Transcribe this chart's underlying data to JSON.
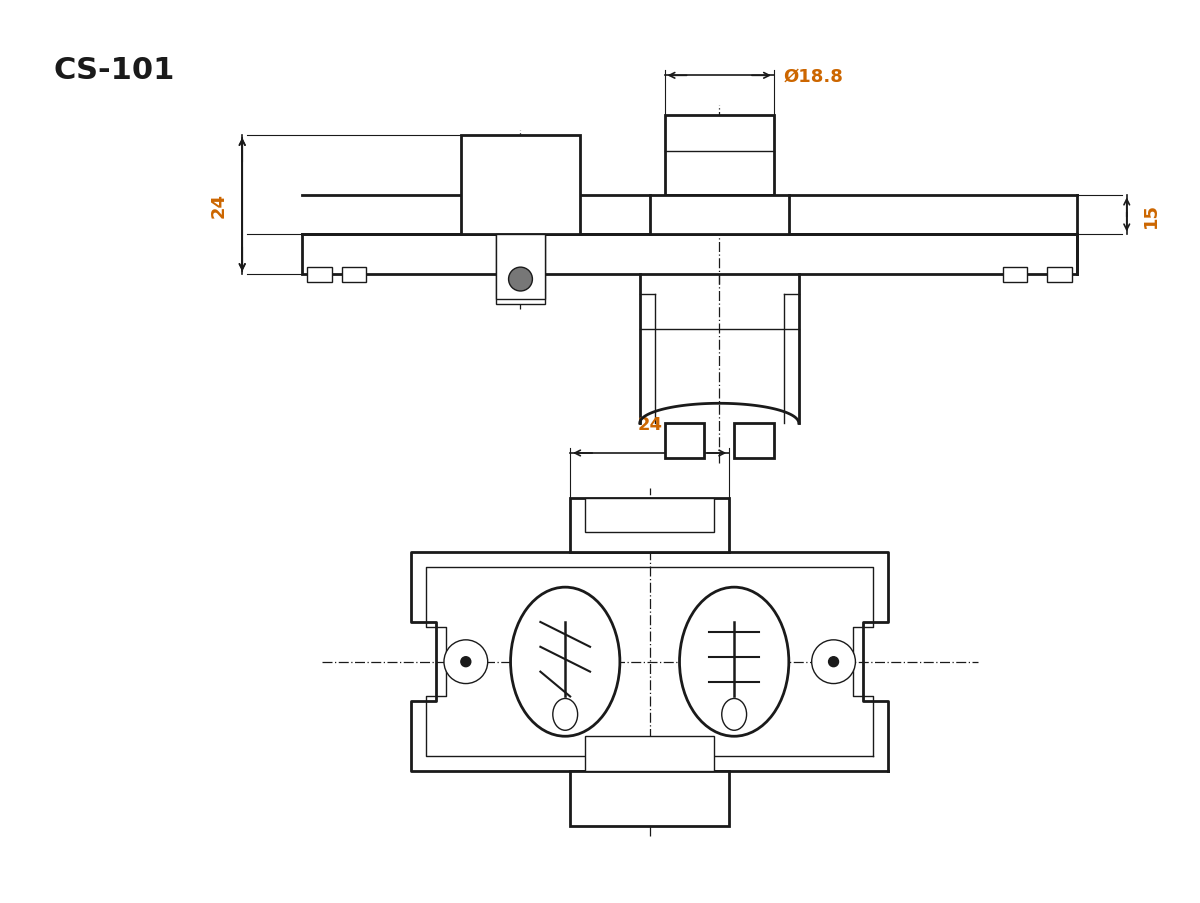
{
  "title": "CS-101",
  "title_color": "#1a1a1a",
  "bg_color": "#ffffff",
  "line_color": "#1a1a1a",
  "dim_color": "#cc6600",
  "dim_24_side": "24",
  "dim_15_side": "15",
  "dim_18_8": "Ø18.8",
  "dim_24_top": "24",
  "lw_main": 2.0,
  "lw_thin": 1.0,
  "lw_dash": 0.9
}
